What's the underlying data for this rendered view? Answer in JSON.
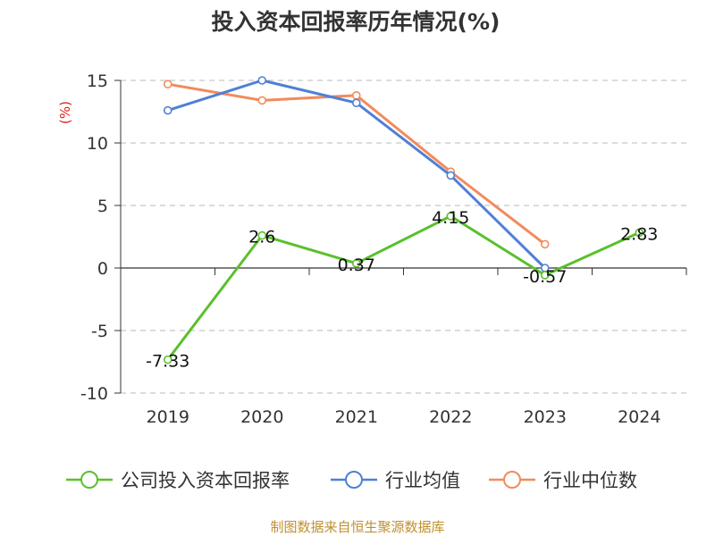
{
  "chart_data": {
    "type": "line",
    "title": "投入资本回报率历年情况(%)",
    "ylabel": "(%)",
    "xlabel": "",
    "categories": [
      "2019",
      "2020",
      "2021",
      "2022",
      "2023",
      "2024"
    ],
    "ylim": [
      -10,
      15
    ],
    "yticks": [
      15,
      10,
      5,
      0,
      -5,
      -10
    ],
    "grid": true,
    "legend_position": "bottom",
    "series": [
      {
        "name": "公司投入资本回报率",
        "color": "#5ac02c",
        "values": [
          -7.33,
          2.6,
          0.37,
          4.15,
          -0.57,
          2.83
        ],
        "labels": [
          "-7.33",
          "2.6",
          "0.37",
          "4.15",
          "-0.57",
          "2.83"
        ]
      },
      {
        "name": "行业均值",
        "color": "#4f80d6",
        "values": [
          12.6,
          15.0,
          13.2,
          7.4,
          0.0,
          null
        ]
      },
      {
        "name": "行业中位数",
        "color": "#f28b5b",
        "values": [
          14.7,
          13.4,
          13.8,
          7.7,
          1.9,
          null
        ]
      }
    ]
  },
  "source": "制图数据来自恒生聚源数据库"
}
